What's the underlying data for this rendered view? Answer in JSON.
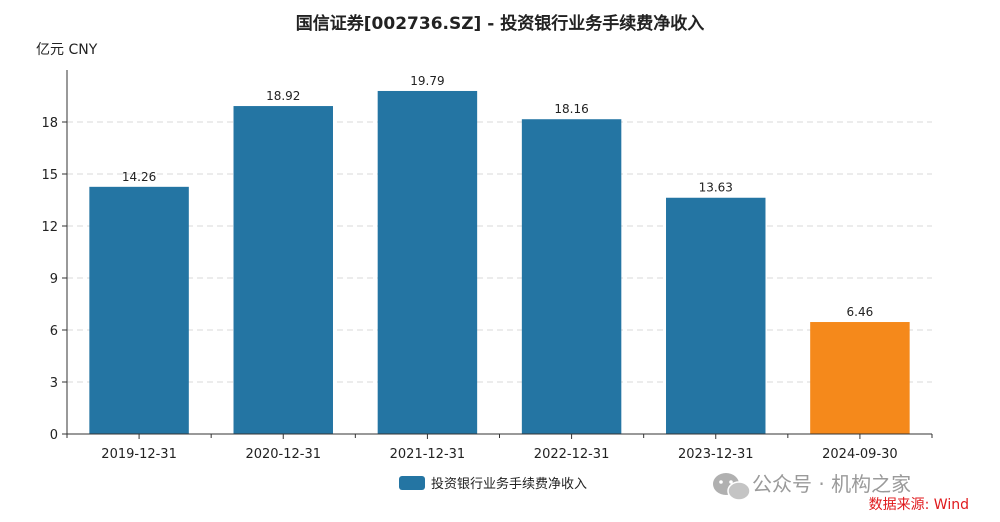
{
  "chart_data": {
    "type": "bar",
    "title": "国信证券[002736.SZ] - 投资银行业务手续费净收入",
    "unit_label": "亿元  CNY",
    "categories": [
      "2019-12-31",
      "2020-12-31",
      "2021-12-31",
      "2022-12-31",
      "2023-12-31",
      "2024-09-30"
    ],
    "series": [
      {
        "name": "投资银行业务手续费净收入",
        "values": [
          14.26,
          18.92,
          19.79,
          18.16,
          13.63,
          6.46
        ]
      }
    ],
    "value_labels": [
      "14.26",
      "18.92",
      "19.79",
      "18.16",
      "13.63",
      "6.46"
    ],
    "bar_colors": [
      "#2475a3",
      "#2475a3",
      "#2475a3",
      "#2475a3",
      "#2475a3",
      "#f5891b"
    ],
    "ylim": [
      0,
      21
    ],
    "yticks": [
      0,
      3,
      6,
      9,
      12,
      15,
      18
    ],
    "grid": true,
    "legend_position": "bottom-center"
  },
  "watermark": "公众号 · 机构之家",
  "source": "数据来源: Wind"
}
